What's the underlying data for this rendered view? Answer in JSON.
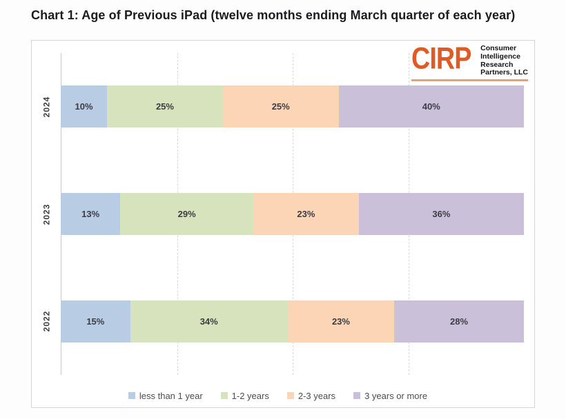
{
  "title": "Chart 1: Age of Previous iPad (twelve months ending March quarter of each year)",
  "logo": {
    "mark": "CIRP",
    "lines": [
      "Consumer",
      "Intelligence",
      "Research",
      "Partners, LLC"
    ],
    "accent_color": "#E05A26",
    "underline_color": "#EF9E70",
    "text_color": "#141414"
  },
  "chart_data": {
    "type": "bar",
    "orientation": "horizontal-stacked",
    "title": "Chart 1: Age of Previous iPad (twelve months ending March quarter of each year)",
    "categories": [
      "2024",
      "2023",
      "2022"
    ],
    "series": [
      {
        "name": "less than 1 year",
        "color": "#B8CCE4",
        "values": [
          10,
          13,
          15
        ]
      },
      {
        "name": "1-2 years",
        "color": "#D6E3BC",
        "values": [
          25,
          29,
          34
        ]
      },
      {
        "name": "2-3 years",
        "color": "#FBD5B5",
        "values": [
          25,
          23,
          23
        ]
      },
      {
        "name": "3 years or more",
        "color": "#CBC0DA",
        "values": [
          40,
          36,
          28
        ]
      }
    ],
    "value_suffix": "%",
    "xlim": [
      0,
      100
    ],
    "gridlines_percent": [
      25,
      50,
      75
    ],
    "grid": "dashed-vertical",
    "legend_position": "bottom",
    "label_color": "#3c3c44"
  }
}
